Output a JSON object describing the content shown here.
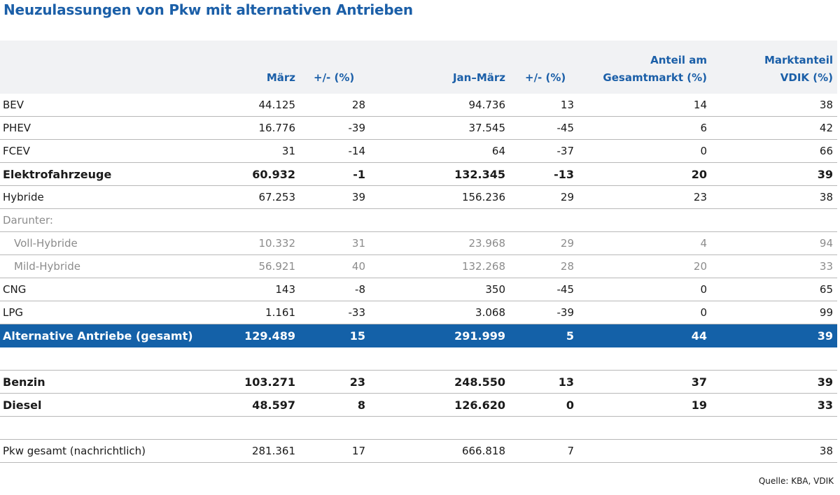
{
  "title": "Neuzulassungen von Pkw mit alternativen Antrieben",
  "headers": {
    "col1": "März",
    "col2": "+/-  (%)",
    "col3": "Jan–März",
    "col4": "+/-  (%)",
    "col5_line1": "Anteil am",
    "col5_line2": "Gesamtmarkt (%)",
    "col6_line1": "Marktanteil",
    "col6_line2": "VDIK (%)"
  },
  "rows": [
    {
      "label": "BEV",
      "v1": "44.125",
      "v2": "28",
      "v3": "94.736",
      "v4": "13",
      "v5": "14",
      "v6": "38"
    },
    {
      "label": "PHEV",
      "v1": "16.776",
      "v2": "-39",
      "v3": "37.545",
      "v4": "-45",
      "v5": "6",
      "v6": "42"
    },
    {
      "label": "FCEV",
      "v1": "31",
      "v2": "-14",
      "v3": "64",
      "v4": "-37",
      "v5": "0",
      "v6": "66"
    },
    {
      "label": "Elektrofahrzeuge",
      "v1": "60.932",
      "v2": "-1",
      "v3": "132.345",
      "v4": "-13",
      "v5": "20",
      "v6": "39"
    },
    {
      "label": "Hybride",
      "v1": "67.253",
      "v2": "39",
      "v3": "156.236",
      "v4": "29",
      "v5": "23",
      "v6": "38"
    },
    {
      "label": "Darunter:"
    },
    {
      "label": "Voll-Hybride",
      "v1": "10.332",
      "v2": "31",
      "v3": "23.968",
      "v4": "29",
      "v5": "4",
      "v6": "94"
    },
    {
      "label": "Mild-Hybride",
      "v1": "56.921",
      "v2": "40",
      "v3": "132.268",
      "v4": "28",
      "v5": "20",
      "v6": "33"
    },
    {
      "label": "CNG",
      "v1": "143",
      "v2": "-8",
      "v3": "350",
      "v4": "-45",
      "v5": "0",
      "v6": "65"
    },
    {
      "label": "LPG",
      "v1": "1.161",
      "v2": "-33",
      "v3": "3.068",
      "v4": "-39",
      "v5": "0",
      "v6": "99"
    },
    {
      "label": "Alternative Antriebe (gesamt)",
      "v1": "129.489",
      "v2": "15",
      "v3": "291.999",
      "v4": "5",
      "v5": "44",
      "v6": "39"
    },
    {
      "label": "Benzin",
      "v1": "103.271",
      "v2": "23",
      "v3": "248.550",
      "v4": "13",
      "v5": "37",
      "v6": "39"
    },
    {
      "label": "Diesel",
      "v1": "48.597",
      "v2": "8",
      "v3": "126.620",
      "v4": "0",
      "v5": "19",
      "v6": "33"
    },
    {
      "label": "Pkw gesamt (nachrichtlich)",
      "v1": "281.361",
      "v2": "17",
      "v3": "666.818",
      "v4": "7",
      "v6": "38"
    }
  ],
  "source": "Quelle: KBA, VDIK"
}
